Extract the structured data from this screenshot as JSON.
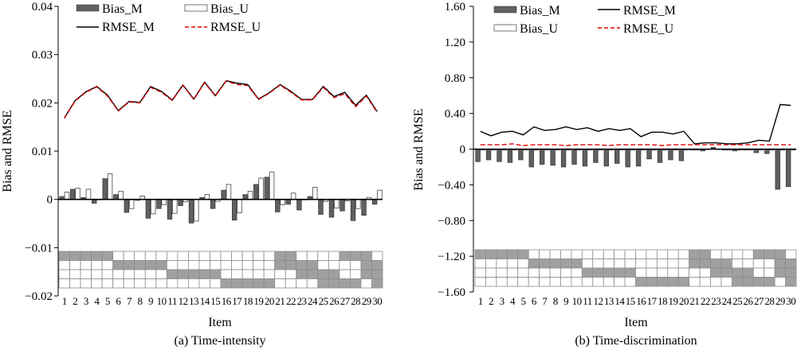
{
  "colors": {
    "bias_m": "#606060",
    "bias_u": "#ffffff",
    "rmse_m": "#000000",
    "rmse_u": "#e00000",
    "grid_fill": "#a0a0a0",
    "grid_line": "#8c8c8c"
  },
  "chart_data": [
    {
      "type": "bar",
      "title": "",
      "caption": "(a) Time-intensity",
      "xlabel": "Item",
      "ylabel": "Bias and RMSE",
      "ylim": [
        -0.02,
        0.04
      ],
      "yticks": [
        "-0.02",
        "-0.01",
        "0",
        "0.01",
        "0.02",
        "0.03",
        "0.04"
      ],
      "ytick_values": [
        -0.02,
        -0.01,
        0,
        0.01,
        0.02,
        0.03,
        0.04
      ],
      "categories": [
        "1",
        "2",
        "3",
        "4",
        "5",
        "6",
        "7",
        "8",
        "9",
        "10",
        "11",
        "12",
        "13",
        "14",
        "15",
        "16",
        "17",
        "18",
        "19",
        "20",
        "21",
        "22",
        "23",
        "24",
        "25",
        "26",
        "27",
        "28",
        "29",
        "30"
      ],
      "legend": {
        "placement": "top-left",
        "entries": [
          "Bias_M",
          "Bias_U",
          "RMSE_M",
          "RMSE_U"
        ]
      },
      "series": [
        {
          "name": "Bias_M",
          "kind": "bar",
          "values": [
            0.0006,
            0.0021,
            0.0004,
            -0.0008,
            0.0043,
            0.001,
            -0.0027,
            -0.0002,
            -0.0039,
            -0.0019,
            -0.0041,
            -0.0013,
            -0.0049,
            0.0004,
            -0.0019,
            0.0019,
            -0.0043,
            0.001,
            0.0031,
            0.0046,
            -0.0026,
            -0.001,
            -0.0022,
            0.0006,
            -0.0031,
            -0.0037,
            -0.0024,
            -0.0044,
            -0.0033,
            -0.001
          ]
        },
        {
          "name": "Bias_U",
          "kind": "bar",
          "values": [
            0.0015,
            0.0023,
            0.0021,
            0.0,
            0.0053,
            0.0017,
            -0.0019,
            0.0007,
            -0.003,
            -0.0011,
            -0.0029,
            -0.0005,
            -0.0045,
            0.001,
            -0.0004,
            0.0031,
            -0.0028,
            0.0017,
            0.0044,
            0.0057,
            -0.0011,
            0.0013,
            0.0,
            0.0025,
            -0.0004,
            -0.0018,
            -0.0003,
            -0.0019,
            0.0004,
            0.0019
          ]
        },
        {
          "name": "RMSE_M",
          "kind": "line",
          "values": [
            0.0169,
            0.0205,
            0.0223,
            0.0234,
            0.0216,
            0.0184,
            0.0203,
            0.0201,
            0.0234,
            0.0224,
            0.0206,
            0.0237,
            0.0208,
            0.0243,
            0.0215,
            0.0246,
            0.0241,
            0.0238,
            0.0208,
            0.0221,
            0.0238,
            0.0224,
            0.0207,
            0.0207,
            0.0234,
            0.0213,
            0.0222,
            0.0195,
            0.0216,
            0.0182
          ]
        },
        {
          "name": "RMSE_U",
          "kind": "line",
          "values": [
            0.0168,
            0.0204,
            0.0222,
            0.0233,
            0.0214,
            0.0183,
            0.0202,
            0.02,
            0.0232,
            0.0222,
            0.0205,
            0.0236,
            0.0207,
            0.0242,
            0.0214,
            0.0245,
            0.0238,
            0.0236,
            0.0207,
            0.022,
            0.0237,
            0.0222,
            0.0206,
            0.0206,
            0.0232,
            0.0211,
            0.0219,
            0.0192,
            0.0214,
            0.018
          ]
        }
      ],
      "design_matrix": [
        [
          1,
          1,
          1,
          1,
          1,
          0,
          0,
          0,
          0,
          0,
          0,
          0,
          0,
          0,
          0,
          0,
          0,
          0,
          0,
          0,
          1,
          1,
          0,
          0,
          0,
          0,
          1,
          1,
          1,
          0
        ],
        [
          0,
          0,
          0,
          0,
          0,
          1,
          1,
          1,
          1,
          1,
          0,
          0,
          0,
          0,
          0,
          0,
          0,
          0,
          0,
          0,
          1,
          1,
          1,
          1,
          0,
          0,
          0,
          0,
          1,
          1
        ],
        [
          0,
          0,
          0,
          0,
          0,
          0,
          0,
          0,
          0,
          0,
          1,
          1,
          1,
          1,
          1,
          0,
          0,
          0,
          0,
          0,
          0,
          0,
          1,
          1,
          1,
          1,
          0,
          0,
          1,
          1
        ],
        [
          0,
          0,
          0,
          0,
          0,
          0,
          0,
          0,
          0,
          0,
          0,
          0,
          0,
          0,
          0,
          1,
          1,
          1,
          1,
          1,
          0,
          0,
          0,
          0,
          1,
          1,
          1,
          1,
          0,
          1
        ]
      ]
    },
    {
      "type": "bar",
      "title": "",
      "caption": "(b) Time-discrimination",
      "xlabel": "Item",
      "ylabel": "Bias and RMSE",
      "ylim": [
        -1.6,
        1.6
      ],
      "yticks": [
        "-1.60",
        "-1.20",
        "-0.80",
        "-0.40",
        "0",
        "0.40",
        "0.80",
        "1.20",
        "1.60"
      ],
      "ytick_values": [
        -1.6,
        -1.2,
        -0.8,
        -0.4,
        0,
        0.4,
        0.8,
        1.2,
        1.6
      ],
      "categories": [
        "1",
        "2",
        "3",
        "4",
        "5",
        "6",
        "7",
        "8",
        "9",
        "10",
        "11",
        "12",
        "13",
        "14",
        "15",
        "16",
        "17",
        "18",
        "19",
        "20",
        "21",
        "22",
        "23",
        "24",
        "25",
        "26",
        "27",
        "28",
        "29",
        "30"
      ],
      "legend": {
        "placement": "top-left",
        "entries": [
          "Bias_M",
          "Bias_U",
          "RMSE_M",
          "RMSE_U"
        ]
      },
      "series": [
        {
          "name": "Bias_M",
          "kind": "bar",
          "values": [
            -0.14,
            -0.12,
            -0.14,
            -0.15,
            -0.12,
            -0.2,
            -0.17,
            -0.18,
            -0.2,
            -0.17,
            -0.19,
            -0.15,
            -0.19,
            -0.16,
            -0.2,
            -0.19,
            -0.11,
            -0.15,
            -0.12,
            -0.13,
            -0.01,
            -0.02,
            0.02,
            -0.01,
            -0.02,
            -0.01,
            -0.04,
            -0.05,
            -0.45,
            -0.42
          ]
        },
        {
          "name": "Bias_U",
          "kind": "bar",
          "values": [
            -0.01,
            -0.01,
            -0.01,
            -0.01,
            -0.01,
            -0.01,
            -0.01,
            -0.01,
            -0.01,
            -0.01,
            -0.01,
            -0.01,
            -0.01,
            -0.01,
            -0.01,
            -0.01,
            -0.01,
            -0.01,
            -0.01,
            -0.01,
            -0.01,
            0.0,
            0.0,
            -0.01,
            -0.01,
            -0.01,
            -0.01,
            -0.01,
            -0.01,
            -0.01
          ]
        },
        {
          "name": "RMSE_M",
          "kind": "line",
          "values": [
            0.2,
            0.15,
            0.19,
            0.2,
            0.16,
            0.25,
            0.21,
            0.22,
            0.25,
            0.22,
            0.24,
            0.2,
            0.23,
            0.21,
            0.23,
            0.14,
            0.19,
            0.19,
            0.17,
            0.2,
            0.06,
            0.07,
            0.07,
            0.06,
            0.06,
            0.07,
            0.1,
            0.09,
            0.5,
            0.49
          ]
        },
        {
          "name": "RMSE_U",
          "kind": "line",
          "values": [
            0.05,
            0.05,
            0.05,
            0.06,
            0.04,
            0.05,
            0.05,
            0.05,
            0.04,
            0.05,
            0.05,
            0.05,
            0.04,
            0.05,
            0.05,
            0.05,
            0.05,
            0.04,
            0.05,
            0.05,
            0.05,
            0.05,
            0.05,
            0.05,
            0.05,
            0.05,
            0.05,
            0.05,
            0.05,
            0.05
          ]
        }
      ],
      "design_matrix": [
        [
          1,
          1,
          1,
          1,
          1,
          0,
          0,
          0,
          0,
          0,
          0,
          0,
          0,
          0,
          0,
          0,
          0,
          0,
          0,
          0,
          1,
          1,
          0,
          0,
          0,
          0,
          1,
          1,
          1,
          0
        ],
        [
          0,
          0,
          0,
          0,
          0,
          1,
          1,
          1,
          1,
          1,
          0,
          0,
          0,
          0,
          0,
          0,
          0,
          0,
          0,
          0,
          1,
          1,
          1,
          1,
          0,
          0,
          0,
          0,
          1,
          1
        ],
        [
          0,
          0,
          0,
          0,
          0,
          0,
          0,
          0,
          0,
          0,
          1,
          1,
          1,
          1,
          1,
          0,
          0,
          0,
          0,
          0,
          0,
          0,
          1,
          1,
          1,
          1,
          0,
          0,
          1,
          1
        ],
        [
          0,
          0,
          0,
          0,
          0,
          0,
          0,
          0,
          0,
          0,
          0,
          0,
          0,
          0,
          0,
          1,
          1,
          1,
          1,
          1,
          0,
          0,
          0,
          0,
          1,
          1,
          1,
          1,
          0,
          1
        ]
      ]
    }
  ]
}
